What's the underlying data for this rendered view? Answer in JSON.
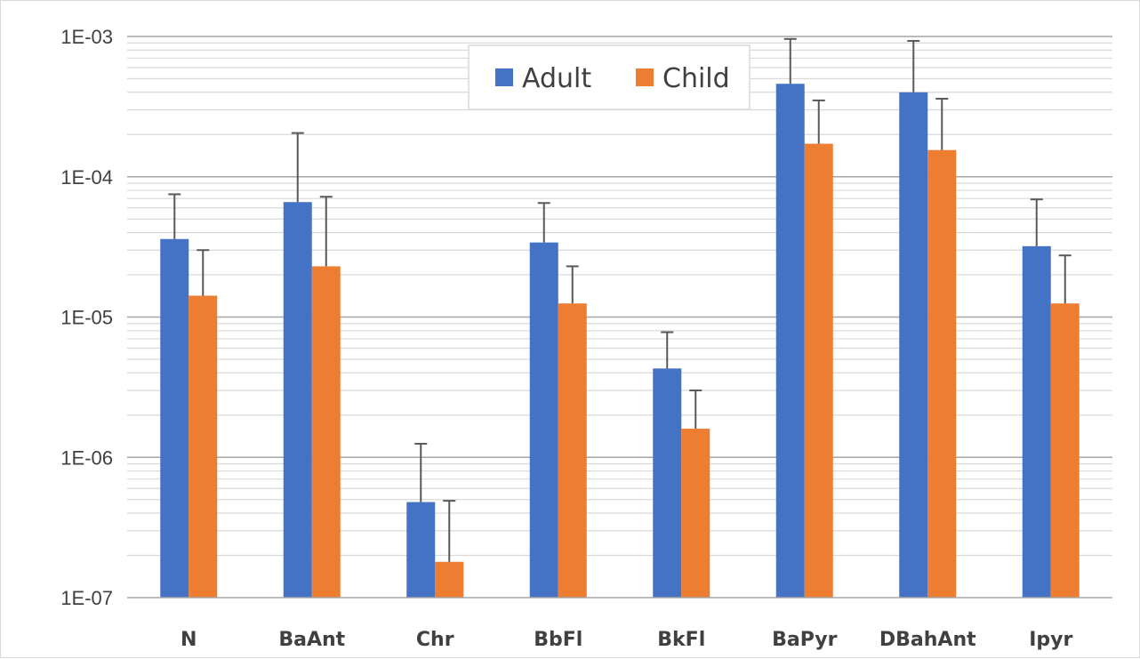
{
  "chart_data": {
    "type": "bar",
    "y_scale": "log",
    "ylim": [
      1e-07,
      0.001
    ],
    "grid": "major and minor horizontal",
    "legend_position": "top-center",
    "categories": [
      "N",
      "BaAnt",
      "Chr",
      "BbFl",
      "BkFl",
      "BaPyr",
      "DBahAnt",
      "Ipyr"
    ],
    "y_tick_labels": [
      "1E-07",
      "1E-06",
      "1E-05",
      "1E-04",
      "1E-03"
    ],
    "y_tick_values": [
      1e-07,
      1e-06,
      1e-05,
      0.0001,
      0.001
    ],
    "series": [
      {
        "name": "Adult",
        "color": "#4472C4",
        "values": [
          3.6e-05,
          6.6e-05,
          4.8e-07,
          3.4e-05,
          4.3e-06,
          0.00046,
          0.0004,
          3.2e-05
        ],
        "error_upper": [
          7.5e-05,
          0.000205,
          1.25e-06,
          6.5e-05,
          7.8e-06,
          0.00096,
          0.00093,
          6.9e-05
        ]
      },
      {
        "name": "Child",
        "color": "#ED7D31",
        "values": [
          1.42e-05,
          2.3e-05,
          1.8e-07,
          1.25e-05,
          1.6e-06,
          0.000172,
          0.000155,
          1.25e-05
        ],
        "error_upper": [
          3e-05,
          7.2e-05,
          4.9e-07,
          2.3e-05,
          3e-06,
          0.00035,
          0.00036,
          2.75e-05
        ]
      }
    ]
  }
}
